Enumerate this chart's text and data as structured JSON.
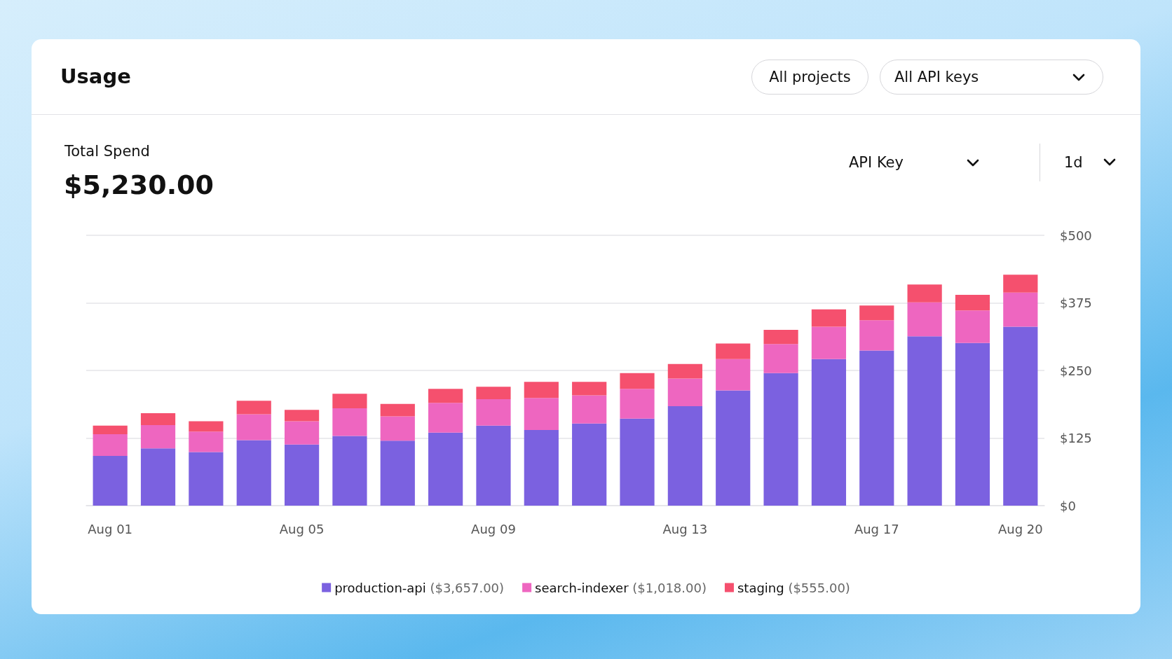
{
  "chart_data": {
    "type": "bar",
    "title": "Usage",
    "annotations": [
      "All projects",
      "All API keys",
      "Total Spend",
      "$5,230.00",
      "API Key",
      "1d"
    ],
    "categories": [
      "Aug 01",
      null,
      null,
      null,
      "Aug 05",
      null,
      null,
      null,
      "Aug 09",
      null,
      null,
      null,
      "Aug 13",
      null,
      null,
      null,
      "Aug 17",
      null,
      null,
      "Aug 20"
    ],
    "stacked": true,
    "series": [
      {
        "name": "production-api ($3,657.00)",
        "color": "#7b61e0",
        "values": [
          92,
          106,
          99,
          121,
          113,
          129,
          120,
          135,
          148,
          140,
          152,
          161,
          184,
          213,
          245,
          271,
          287,
          313,
          301,
          331
        ]
      },
      {
        "name": "search-indexer ($1,018.00)",
        "color": "#ee66c0",
        "values": [
          40,
          43,
          38,
          48,
          43,
          51,
          45,
          55,
          49,
          59,
          52,
          55,
          51,
          58,
          54,
          60,
          56,
          63,
          60,
          63
        ]
      },
      {
        "name": "staging ($555.00)",
        "color": "#f5506e",
        "values": [
          16,
          22,
          19,
          25,
          21,
          27,
          23,
          26,
          23,
          30,
          25,
          29,
          27,
          29,
          26,
          32,
          27,
          33,
          29,
          33
        ]
      }
    ],
    "ylim": [
      0,
      500
    ],
    "yticks": [
      {
        "value": 0,
        "label": "$0"
      },
      {
        "value": 125,
        "label": "$125"
      },
      {
        "value": 250,
        "label": "$250"
      },
      {
        "value": 375,
        "label": "$375"
      },
      {
        "value": 500,
        "label": "$500"
      }
    ],
    "grid": "y",
    "legend": "bottom"
  }
}
